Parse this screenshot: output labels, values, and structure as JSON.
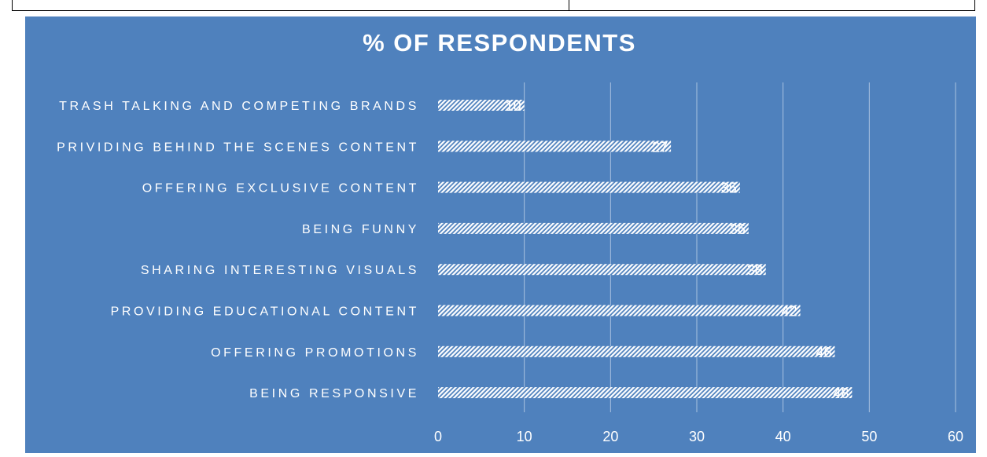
{
  "chart_data": {
    "type": "bar",
    "orientation": "horizontal",
    "title": "% OF RESPONDENTS",
    "categories": [
      "TRASH TALKING AND COMPETING BRANDS",
      "PRIVIDING BEHIND THE SCENES CONTENT",
      "OFFERING EXCLUSIVE CONTENT",
      "BEING FUNNY",
      "SHARING INTERESTING VISUALS",
      "PROVIDING EDUCATIONAL CONTENT",
      "OFFERING PROMOTIONS",
      "BEING RESPONSIVE"
    ],
    "values": [
      10,
      27,
      35,
      36,
      38,
      42,
      46,
      48
    ],
    "xlim": [
      0,
      60
    ],
    "xticks": [
      "0",
      "10",
      "20",
      "30",
      "40",
      "50",
      "60"
    ],
    "grid": true,
    "legend": "none",
    "colors": {
      "background": "#4f81bd",
      "bar": "#ffffff",
      "text": "#ffffff",
      "gridline": "#a9c2e0"
    }
  }
}
